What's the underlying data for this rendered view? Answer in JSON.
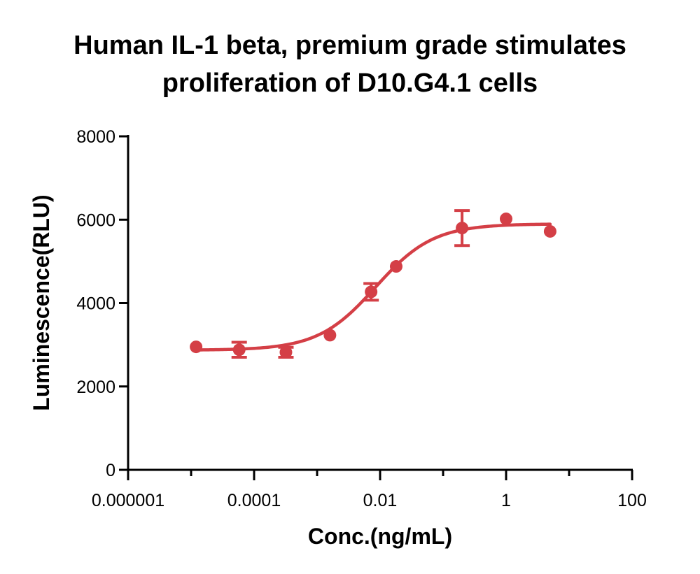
{
  "chart_data": {
    "type": "scatter",
    "title": [
      "Human IL-1 beta, premium grade stimulates",
      "proliferation of D10.G4.1 cells"
    ],
    "xlabel": "Conc.(ng/mL)",
    "ylabel": "Luminescence(RLU)",
    "x_scale": "log",
    "xlim": [
      1e-06,
      100
    ],
    "ylim": [
      0,
      8000
    ],
    "x_ticks": [
      1e-06,
      0.0001,
      0.01,
      1,
      100
    ],
    "x_tick_labels": [
      "0.000001",
      "0.0001",
      "0.01",
      "1",
      "100"
    ],
    "y_ticks": [
      0,
      2000,
      4000,
      6000,
      8000
    ],
    "y_tick_labels": [
      "0",
      "2000",
      "4000",
      "6000",
      "8000"
    ],
    "grid": false,
    "color": "#d43f46",
    "series": [
      {
        "points": [
          {
            "x": 1.2e-05,
            "y": 2950,
            "err": 0
          },
          {
            "x": 5.8e-05,
            "y": 2880,
            "err": 180
          },
          {
            "x": 0.00032,
            "y": 2820,
            "err": 120
          },
          {
            "x": 0.0016,
            "y": 3230,
            "err": 0
          },
          {
            "x": 0.0072,
            "y": 4270,
            "err": 200
          },
          {
            "x": 0.018,
            "y": 4880,
            "err": 0
          },
          {
            "x": 0.2,
            "y": 5800,
            "err": 420
          },
          {
            "x": 1.0,
            "y": 6020,
            "err": 0
          },
          {
            "x": 5.0,
            "y": 5720,
            "err": 0
          }
        ],
        "fit": {
          "model": "4PL",
          "bottom": 2870,
          "top": 5900,
          "ec50": 0.0085,
          "hill": 0.95,
          "x_range": [
            1.2e-05,
            5.0
          ]
        }
      }
    ]
  }
}
